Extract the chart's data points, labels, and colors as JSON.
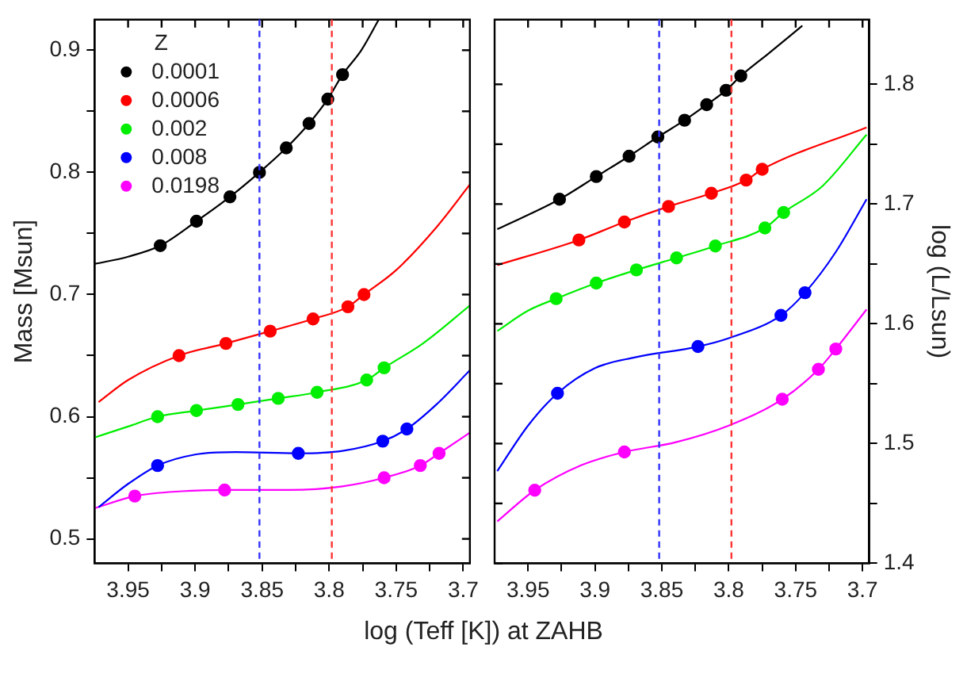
{
  "chart_data": [
    {
      "type": "scatter",
      "xlabel": "log (Teff [K]) at ZAHB",
      "ylabel": "Mass [Msun]",
      "legend_title": "Z",
      "legend": "top left",
      "marker": "circle",
      "grid": false,
      "xlim": [
        3.975,
        3.695
      ],
      "xticks": [
        3.95,
        {
          "value": 3.925,
          "label": null
        },
        3.9,
        {
          "value": 3.875,
          "label": null
        },
        3.85,
        {
          "value": 3.825,
          "label": null
        },
        3.8,
        {
          "value": 3.775,
          "label": null
        },
        3.75,
        {
          "value": 3.725,
          "label": null
        },
        3.7
      ],
      "ylim": [
        0.48,
        0.925
      ],
      "yticks": [
        {
          "value": 0.5,
          "label": "0.5"
        },
        {
          "value": 0.55,
          "label": null
        },
        {
          "value": 0.6,
          "label": "0.6"
        },
        {
          "value": 0.65,
          "label": null
        },
        {
          "value": 0.7,
          "label": "0.7"
        },
        {
          "value": 0.75,
          "label": null
        },
        {
          "value": 0.8,
          "label": "0.8"
        },
        {
          "value": 0.85,
          "label": null
        },
        {
          "value": 0.9,
          "label": "0.9"
        }
      ],
      "ref_lines": [
        {
          "axis": "x",
          "value": 3.852,
          "color": "#3333ff",
          "line_style": "dashed"
        },
        {
          "axis": "x",
          "value": 3.798,
          "color": "#ff3333",
          "line_style": "dashed"
        }
      ],
      "series": [
        {
          "type": "scatter",
          "name": "0.0001",
          "color": "#000000",
          "x": [
            3.926,
            3.899,
            3.874,
            3.852,
            3.832,
            3.815,
            3.801,
            3.79
          ],
          "values": [
            0.74,
            0.76,
            0.78,
            0.8,
            0.82,
            0.84,
            0.86,
            0.88
          ]
        },
        {
          "type": "scatter",
          "name": "0.0006",
          "color": "#ff0000",
          "x": [
            3.912,
            3.877,
            3.844,
            3.812,
            3.786,
            3.774
          ],
          "values": [
            0.65,
            0.66,
            0.67,
            0.68,
            0.69,
            0.7
          ]
        },
        {
          "type": "scatter",
          "name": "0.002",
          "color": "#00ee00",
          "x": [
            3.928,
            3.899,
            3.868,
            3.838,
            3.809,
            3.772,
            3.759
          ],
          "values": [
            0.6,
            0.605,
            0.61,
            0.615,
            0.62,
            0.63,
            0.64
          ]
        },
        {
          "type": "scatter",
          "name": "0.008",
          "color": "#0000ff",
          "x": [
            3.928,
            3.823,
            3.76,
            3.742
          ],
          "values": [
            0.56,
            0.57,
            0.58,
            0.59
          ]
        },
        {
          "type": "scatter",
          "name": "0.0198",
          "color": "#ff00ff",
          "x": [
            3.945,
            3.878,
            3.759,
            3.732,
            3.718
          ],
          "values": [
            0.535,
            0.54,
            0.55,
            0.56,
            0.57
          ]
        },
        {
          "type": "line",
          "marker": "none",
          "color": "#000000",
          "x": [
            3.975,
            3.95,
            3.926,
            3.899,
            3.874,
            3.852,
            3.832,
            3.815,
            3.801,
            3.79,
            3.776,
            3.763
          ],
          "values": [
            0.725,
            0.731,
            0.74,
            0.76,
            0.78,
            0.8,
            0.82,
            0.84,
            0.86,
            0.88,
            0.9,
            0.925
          ]
        },
        {
          "type": "line",
          "marker": "none",
          "color": "#ff0000",
          "x": [
            3.972,
            3.95,
            3.912,
            3.877,
            3.844,
            3.812,
            3.786,
            3.774,
            3.75,
            3.72,
            3.695
          ],
          "values": [
            0.612,
            0.63,
            0.65,
            0.66,
            0.67,
            0.68,
            0.69,
            0.7,
            0.72,
            0.755,
            0.79
          ]
        },
        {
          "type": "line",
          "marker": "none",
          "color": "#00ee00",
          "x": [
            3.975,
            3.95,
            3.928,
            3.899,
            3.868,
            3.838,
            3.809,
            3.772,
            3.759,
            3.73,
            3.695
          ],
          "values": [
            0.583,
            0.592,
            0.6,
            0.605,
            0.61,
            0.615,
            0.62,
            0.63,
            0.64,
            0.66,
            0.691
          ]
        },
        {
          "type": "line",
          "marker": "none",
          "color": "#0000ff",
          "x": [
            3.972,
            3.95,
            3.928,
            3.9,
            3.87,
            3.823,
            3.79,
            3.76,
            3.742,
            3.72,
            3.695
          ],
          "values": [
            0.526,
            0.545,
            0.56,
            0.569,
            0.571,
            0.57,
            0.572,
            0.58,
            0.59,
            0.61,
            0.638
          ]
        },
        {
          "type": "line",
          "marker": "none",
          "color": "#ff00ff",
          "x": [
            3.975,
            3.945,
            3.91,
            3.878,
            3.83,
            3.79,
            3.759,
            3.732,
            3.718,
            3.695
          ],
          "values": [
            0.525,
            0.535,
            0.539,
            0.54,
            0.54,
            0.543,
            0.55,
            0.56,
            0.57,
            0.587
          ]
        }
      ]
    },
    {
      "type": "scatter",
      "y2label": "log (L/Lsun)",
      "marker": "circle",
      "grid": false,
      "xlim": [
        3.975,
        3.695
      ],
      "xticks": [
        3.95,
        {
          "value": 3.925,
          "label": null
        },
        3.9,
        {
          "value": 3.875,
          "label": null
        },
        3.85,
        {
          "value": 3.825,
          "label": null
        },
        3.8,
        {
          "value": 3.775,
          "label": null
        },
        3.75,
        {
          "value": 3.725,
          "label": null
        },
        3.7
      ],
      "y2lim": [
        1.4,
        1.854
      ],
      "y2ticks": [
        {
          "value": 1.4,
          "label": "1.4"
        },
        {
          "value": 1.45,
          "label": null
        },
        {
          "value": 1.5,
          "label": "1.5"
        },
        {
          "value": 1.55,
          "label": null
        },
        {
          "value": 1.6,
          "label": "1.6"
        },
        {
          "value": 1.65,
          "label": null
        },
        {
          "value": 1.7,
          "label": "1.7"
        },
        {
          "value": 1.75,
          "label": null
        },
        {
          "value": 1.8,
          "label": "1.8"
        }
      ],
      "ref_lines": [
        {
          "axis": "x",
          "value": 3.852,
          "color": "#3333ff",
          "line_style": "dashed"
        },
        {
          "axis": "x",
          "value": 3.798,
          "color": "#ff3333",
          "line_style": "dashed"
        }
      ],
      "series": [
        {
          "type": "scatter",
          "axis": "y2",
          "color": "#000000",
          "x": [
            3.9265,
            3.899,
            3.8745,
            3.853,
            3.833,
            3.8165,
            3.802,
            3.791
          ],
          "values": [
            1.704,
            1.723,
            1.74,
            1.756,
            1.77,
            1.783,
            1.795,
            1.807
          ]
        },
        {
          "type": "scatter",
          "axis": "y2",
          "color": "#ff0000",
          "x": [
            3.912,
            3.878,
            3.845,
            3.813,
            3.787,
            3.775
          ],
          "values": [
            1.67,
            1.685,
            1.698,
            1.709,
            1.72,
            1.729
          ]
        },
        {
          "type": "scatter",
          "axis": "y2",
          "color": "#00ee00",
          "x": [
            3.929,
            3.899,
            3.869,
            3.839,
            3.81,
            3.773,
            3.759
          ],
          "values": [
            1.621,
            1.634,
            1.645,
            1.655,
            1.665,
            1.68,
            1.693
          ]
        },
        {
          "type": "scatter",
          "axis": "y2",
          "color": "#0000ff",
          "x": [
            3.928,
            3.823,
            3.761,
            3.743
          ],
          "values": [
            1.542,
            1.581,
            1.607,
            1.626
          ]
        },
        {
          "type": "scatter",
          "axis": "y2",
          "color": "#ff00ff",
          "x": [
            3.945,
            3.878,
            3.76,
            3.733,
            3.72
          ],
          "values": [
            1.461,
            1.493,
            1.537,
            1.562,
            1.579
          ]
        },
        {
          "type": "line",
          "axis": "y2",
          "marker": "none",
          "color": "#000000",
          "x": [
            3.973,
            3.9265,
            3.899,
            3.8745,
            3.853,
            3.833,
            3.8165,
            3.802,
            3.791,
            3.77,
            3.745
          ],
          "values": [
            1.679,
            1.704,
            1.723,
            1.74,
            1.756,
            1.77,
            1.783,
            1.795,
            1.807,
            1.826,
            1.849
          ]
        },
        {
          "type": "line",
          "axis": "y2",
          "marker": "none",
          "color": "#ff0000",
          "x": [
            3.973,
            3.912,
            3.878,
            3.845,
            3.813,
            3.787,
            3.775,
            3.697
          ],
          "values": [
            1.649,
            1.67,
            1.685,
            1.698,
            1.709,
            1.72,
            1.729,
            1.764
          ]
        },
        {
          "type": "line",
          "axis": "y2",
          "marker": "none",
          "color": "#00ee00",
          "x": [
            3.973,
            3.95,
            3.929,
            3.899,
            3.869,
            3.839,
            3.81,
            3.773,
            3.759,
            3.73,
            3.697
          ],
          "values": [
            1.594,
            1.611,
            1.621,
            1.634,
            1.645,
            1.655,
            1.665,
            1.68,
            1.693,
            1.715,
            1.758
          ]
        },
        {
          "type": "line",
          "axis": "y2",
          "marker": "none",
          "color": "#0000ff",
          "x": [
            3.973,
            3.95,
            3.928,
            3.9,
            3.87,
            3.823,
            3.8,
            3.761,
            3.743,
            3.72,
            3.697
          ],
          "values": [
            1.477,
            1.515,
            1.542,
            1.563,
            1.572,
            1.581,
            1.588,
            1.607,
            1.626,
            1.66,
            1.704
          ]
        },
        {
          "type": "line",
          "axis": "y2",
          "marker": "none",
          "color": "#ff00ff",
          "x": [
            3.973,
            3.945,
            3.91,
            3.878,
            3.84,
            3.8,
            3.76,
            3.733,
            3.72,
            3.697
          ],
          "values": [
            1.435,
            1.461,
            1.482,
            1.493,
            1.501,
            1.515,
            1.537,
            1.562,
            1.579,
            1.612
          ]
        }
      ]
    }
  ]
}
